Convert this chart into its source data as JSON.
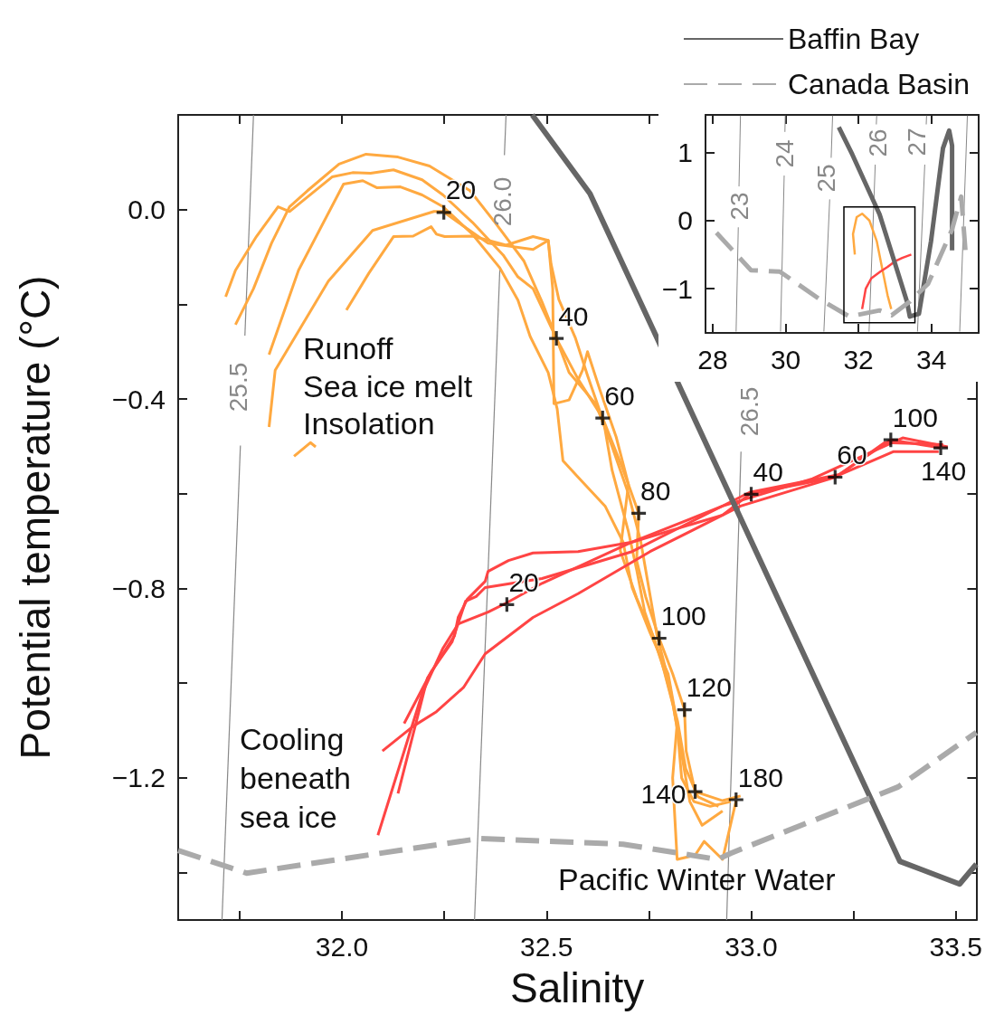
{
  "chart_data": [
    {
      "type": "line",
      "xlabel": "Salinity",
      "ylabel": "Potential temperature (°C)",
      "xlim": [
        31.6,
        33.55
      ],
      "xticks": [
        {
          "value": 31.75,
          "label": null
        },
        {
          "value": 32,
          "label": "32.0"
        },
        {
          "value": 32.25,
          "label": null
        },
        {
          "value": 32.5,
          "label": "32.5"
        },
        {
          "value": 32.75,
          "label": null
        },
        {
          "value": 33,
          "label": "33.0"
        },
        {
          "value": 33.25,
          "label": null
        },
        {
          "value": 33.5,
          "label": "33.5"
        }
      ],
      "ylim": [
        -1.5,
        0.2
      ],
      "yticks": [
        {
          "value": -1.4,
          "label": null
        },
        {
          "value": -1.2,
          "label": "−1.2"
        },
        {
          "value": -1,
          "label": null
        },
        {
          "value": -0.8,
          "label": "−0.8"
        },
        {
          "value": -0.6,
          "label": null
        },
        {
          "value": -0.4,
          "label": "−0.4"
        },
        {
          "value": -0.2,
          "label": null
        },
        {
          "value": 0,
          "label": "0.0"
        }
      ],
      "grid": false,
      "legend": "top right",
      "annotations": [
        "Runoff",
        "Sea ice melt",
        "Insolation",
        "Cooling",
        "beneath",
        "sea ice",
        "Pacific Winter Water",
        "25.5",
        "26.0",
        "26.5",
        {
          "text": "20",
          "x": 32.249,
          "y": -0.006
        },
        {
          "text": "40",
          "x": 32.524,
          "y": -0.272
        },
        {
          "text": "60",
          "x": 32.637,
          "y": -0.44
        },
        {
          "text": "80",
          "x": 32.725,
          "y": -0.641
        },
        {
          "text": "100",
          "x": 32.775,
          "y": -0.905
        },
        {
          "text": "120",
          "x": 32.837,
          "y": -1.056
        },
        {
          "text": "140",
          "x": 32.863,
          "y": -1.229
        },
        {
          "text": "180",
          "x": 32.963,
          "y": -1.246
        },
        {
          "text": "20",
          "x": 32.403,
          "y": -0.834
        },
        {
          "text": "40",
          "x": 33.0,
          "y": -0.601
        },
        {
          "text": "60",
          "x": 33.205,
          "y": -0.565
        },
        {
          "text": "100",
          "x": 33.341,
          "y": -0.486
        },
        {
          "text": "140",
          "x": 33.463,
          "y": -0.503
        }
      ],
      "series": [
        {
          "color": "#888888",
          "x": [
            31.784,
            31.763
          ],
          "values": [
            0.2,
            -0.266
          ]
        },
        {
          "color": "#888888",
          "x": [
            31.752,
            31.707
          ],
          "values": [
            -0.498,
            -1.5
          ]
        },
        {
          "color": "#888888",
          "x": [
            32.401,
            32.397
          ],
          "values": [
            0.2,
            0.115
          ]
        },
        {
          "color": "#888888",
          "x": [
            32.386,
            32.324
          ],
          "values": [
            -0.122,
            -1.5
          ]
        },
        {
          "color": "#888888",
          "x": [
            32.975,
            32.94
          ],
          "values": [
            -0.511,
            -1.5
          ]
        },
        {
          "name": "Baffin Bay",
          "color": "#666666",
          "line_style": "solid",
          "x": [
            32.465,
            32.606,
            33.363,
            33.509,
            33.55
          ],
          "values": [
            0.2,
            0.034,
            -1.376,
            -1.424,
            -1.382
          ]
        },
        {
          "name": "Canada Basin",
          "color": "#aaaaaa",
          "line_style": "dashed",
          "x": [
            31.6,
            31.767,
            32.335,
            32.687,
            32.918,
            32.95,
            33.359,
            33.55
          ],
          "values": [
            -1.353,
            -1.401,
            -1.328,
            -1.34,
            -1.372,
            -1.359,
            -1.219,
            -1.104
          ]
        },
        {
          "color": "#ffa940",
          "x": [
            31.716,
            31.74,
            31.791,
            31.844,
            31.872,
            31.976,
            32.026,
            32.07,
            32.126,
            32.196,
            32.247,
            32.319,
            32.394,
            32.43,
            32.467,
            32.524,
            32.577,
            32.637,
            32.687,
            32.725,
            32.72,
            32.742,
            32.775,
            32.808,
            32.837,
            32.841,
            32.863,
            32.93,
            32.974
          ],
          "values": [
            -0.184,
            -0.128,
            -0.057,
            0.006,
            -0.004,
            0.069,
            0.078,
            0.077,
            0.084,
            0.063,
            0.031,
            -0.027,
            -0.096,
            -0.142,
            -0.167,
            -0.272,
            -0.358,
            -0.44,
            -0.549,
            -0.641,
            -0.741,
            -0.817,
            -0.905,
            -0.98,
            -1.056,
            -1.143,
            -1.229,
            -1.248,
            -1.238
          ]
        },
        {
          "color": "#ffa940",
          "x": [
            31.74,
            31.784,
            31.828,
            31.872,
            31.916,
            31.993,
            32.059,
            32.137,
            32.214,
            32.313,
            32.374,
            32.445,
            32.489,
            32.524,
            32.555,
            32.62,
            32.66,
            32.7,
            32.73,
            32.75,
            32.77,
            32.8,
            32.82,
            32.83,
            32.86,
            32.9,
            32.95
          ],
          "values": [
            -0.243,
            -0.167,
            -0.071,
            0.006,
            0.04,
            0.096,
            0.117,
            0.111,
            0.092,
            0.04,
            -0.027,
            -0.109,
            -0.195,
            -0.272,
            -0.344,
            -0.41,
            -0.5,
            -0.6,
            -0.7,
            -0.8,
            -0.9,
            -1.0,
            -1.1,
            -1.2,
            -1.25,
            -1.26,
            -1.25
          ]
        },
        {
          "color": "#ffa940",
          "x": [
            31.822,
            31.894,
            32.004,
            32.051,
            32.086,
            32.143,
            32.196,
            32.247,
            32.319,
            32.385,
            32.43,
            32.46,
            32.504,
            32.526,
            32.54,
            32.577,
            32.643,
            32.687,
            32.709,
            32.753,
            32.797,
            32.819,
            32.808,
            32.819,
            32.863,
            32.885,
            32.93,
            32.963
          ],
          "values": [
            -0.306,
            -0.128,
            0.054,
            0.061,
            0.046,
            0.048,
            0.031,
            0.006,
            -0.052,
            -0.122,
            -0.191,
            -0.268,
            -0.344,
            -0.421,
            -0.53,
            -0.565,
            -0.626,
            -0.702,
            -0.798,
            -0.894,
            -0.98,
            -1.085,
            -1.2,
            -1.372,
            -1.363,
            -1.334,
            -1.372,
            -1.248
          ]
        },
        {
          "color": "#ffa940",
          "x": [
            31.822,
            31.837,
            31.967,
            32.075,
            32.225,
            32.247,
            32.284,
            32.357,
            32.467,
            32.504,
            32.511,
            32.53,
            32.57,
            32.6,
            32.64,
            32.66,
            32.7,
            32.72,
            32.74,
            32.78,
            32.81,
            32.83,
            32.85,
            32.88,
            32.93
          ],
          "values": [
            -0.459,
            -0.339,
            -0.151,
            -0.044,
            -0.004,
            -0.004,
            -0.027,
            -0.071,
            -0.084,
            -0.065,
            -0.115,
            -0.19,
            -0.27,
            -0.35,
            -0.45,
            -0.55,
            -0.68,
            -0.76,
            -0.85,
            -0.95,
            -1.05,
            -1.15,
            -1.25,
            -1.3,
            -1.27
          ]
        },
        {
          "color": "#ffa940",
          "x": [
            32.011,
            32.066,
            32.126,
            32.174,
            32.218,
            32.231,
            32.251,
            32.319,
            32.401,
            32.467,
            32.504,
            32.515,
            32.518,
            32.555,
            32.588,
            32.6,
            32.63,
            32.67,
            32.7,
            32.68,
            32.72,
            32.76,
            32.79,
            32.82,
            32.84,
            32.87,
            32.92
          ],
          "values": [
            -0.212,
            -0.134,
            -0.057,
            -0.056,
            -0.036,
            -0.052,
            -0.057,
            -0.056,
            -0.075,
            -0.057,
            -0.065,
            -0.167,
            -0.41,
            -0.402,
            -0.339,
            -0.3,
            -0.38,
            -0.48,
            -0.58,
            -0.72,
            -0.82,
            -0.9,
            -0.98,
            -1.08,
            -1.18,
            -1.24,
            -1.26
          ]
        },
        {
          "color": "#ffa940",
          "x": [
            31.883,
            31.923,
            31.936
          ],
          "values": [
            -0.521,
            -0.492,
            -0.501
          ]
        },
        {
          "color": "#ff4444",
          "x": [
            32.088,
            32.196,
            32.247,
            32.284,
            32.357,
            32.401,
            32.489,
            32.709,
            32.93,
            32.996,
            33.205,
            33.341,
            33.463
          ],
          "values": [
            -1.321,
            -1.022,
            -0.926,
            -0.875,
            -0.85,
            -0.831,
            -0.789,
            -0.702,
            -0.645,
            -0.601,
            -0.565,
            -0.486,
            -0.503
          ]
        },
        {
          "color": "#ff4444",
          "x": [
            32.099,
            32.174,
            32.231,
            32.297,
            32.35,
            32.467,
            32.577,
            32.753,
            32.974,
            33.194,
            33.348,
            33.458
          ],
          "values": [
            -1.143,
            -1.091,
            -1.06,
            -1.009,
            -0.938,
            -0.861,
            -0.811,
            -0.722,
            -0.626,
            -0.568,
            -0.511,
            -0.511
          ]
        },
        {
          "color": "#ff4444",
          "x": [
            32.137,
            32.209,
            32.275,
            32.284,
            32.306,
            32.35,
            32.357,
            32.407,
            32.467,
            32.577,
            32.709,
            32.93,
            33.15,
            33.37,
            33.48
          ],
          "values": [
            -1.233,
            -0.989,
            -0.9,
            -0.861,
            -0.823,
            -0.785,
            -0.764,
            -0.741,
            -0.725,
            -0.722,
            -0.702,
            -0.626,
            -0.568,
            -0.482,
            -0.501
          ]
        },
        {
          "color": "#ff4444",
          "x": [
            32.152,
            32.218,
            32.269,
            32.302,
            32.328,
            32.35,
            32.489,
            32.709,
            32.996,
            33.216,
            33.326,
            33.469
          ],
          "values": [
            -1.085,
            -0.976,
            -0.913,
            -0.827,
            -0.817,
            -0.798,
            -0.779,
            -0.722,
            -0.597,
            -0.559,
            -0.492,
            -0.496
          ]
        },
        {
          "type": "scatter",
          "marker": "cross",
          "color": "#000000",
          "x": [
            32.249,
            32.524,
            32.637,
            32.725,
            32.775,
            32.837,
            32.863,
            32.963
          ],
          "values": [
            -0.006,
            -0.272,
            -0.44,
            -0.641,
            -0.905,
            -1.056,
            -1.229,
            -1.246
          ]
        },
        {
          "type": "scatter",
          "marker": "cross",
          "color": "#000000",
          "x": [
            32.403,
            33.0,
            33.205,
            33.341,
            33.463
          ],
          "values": [
            -0.834,
            -0.601,
            -0.565,
            -0.486,
            -0.503
          ]
        }
      ]
    },
    {
      "type": "line",
      "xlim": [
        27.8,
        35.3
      ],
      "xticks": [
        28,
        30,
        32,
        34
      ],
      "ylim": [
        -1.65,
        1.55
      ],
      "yticks": [
        {
          "value": -1,
          "label": "−1"
        },
        0,
        1
      ],
      "grid": false,
      "legend": false,
      "annotations": [
        "23",
        "24",
        "25",
        "26",
        "27"
      ],
      "series": [
        {
          "color": "#888888",
          "x": [
            28.76,
            28.72
          ],
          "values": [
            1.54,
            0.5
          ]
        },
        {
          "color": "#888888",
          "x": [
            28.7,
            28.64
          ],
          "values": [
            -0.1,
            -1.63
          ]
        },
        {
          "color": "#888888",
          "x": [
            29.99,
            29.98
          ],
          "values": [
            1.54,
            1.3
          ]
        },
        {
          "color": "#888888",
          "x": [
            29.96,
            29.86
          ],
          "values": [
            0.66,
            -1.63
          ]
        },
        {
          "color": "#888888",
          "x": [
            31.29,
            31.25
          ],
          "values": [
            1.54,
            0.92
          ]
        },
        {
          "color": "#888888",
          "x": [
            31.21,
            31.05
          ],
          "values": [
            0.31,
            -1.63
          ]
        },
        {
          "color": "#888888",
          "x": [
            32.5,
            32.49
          ],
          "values": [
            1.54,
            1.41
          ]
        },
        {
          "color": "#888888",
          "x": [
            32.46,
            32.29
          ],
          "values": [
            0.82,
            -1.63
          ]
        },
        {
          "color": "#888888",
          "x": [
            33.87,
            33.86
          ],
          "values": [
            1.54,
            1.41
          ]
        },
        {
          "color": "#888888",
          "x": [
            33.82,
            33.62
          ],
          "values": [
            0.82,
            -1.63
          ]
        },
        {
          "color": "#888888",
          "x": [
            34.99,
            34.78
          ],
          "values": [
            1.54,
            -1.63
          ]
        },
        {
          "color": "#ffa940",
          "x": [
            31.9,
            31.85,
            31.95,
            32.1,
            32.3,
            32.5,
            32.65,
            32.8,
            32.9
          ],
          "values": [
            -0.5,
            -0.2,
            0.05,
            0.1,
            0.0,
            -0.3,
            -0.7,
            -1.1,
            -1.3
          ]
        },
        {
          "color": "#ff4444",
          "x": [
            32.1,
            32.2,
            32.35,
            32.6,
            32.8,
            33.0,
            33.2,
            33.45
          ],
          "values": [
            -1.3,
            -1.0,
            -0.85,
            -0.75,
            -0.68,
            -0.6,
            -0.55,
            -0.5
          ]
        },
        {
          "color": "#666666",
          "line_style": "solid",
          "x": [
            31.46,
            31.83,
            32.58,
            33.33,
            33.41,
            33.66,
            33.99,
            34.32,
            34.49,
            34.57,
            34.57
          ],
          "values": [
            1.37,
            0.97,
            0.09,
            -1.19,
            -1.41,
            -1.37,
            -0.31,
            1.06,
            1.32,
            1.1,
            -0.44
          ]
        },
        {
          "color": "#aaaaaa",
          "line_style": "dashed",
          "x": [
            28.1,
            29.05,
            29.84,
            30.92,
            31.75,
            32.58,
            32.91,
            33.41,
            33.91,
            34.57,
            34.82,
            34.86,
            34.95
          ],
          "values": [
            -0.18,
            -0.73,
            -0.75,
            -1.15,
            -1.41,
            -1.32,
            -1.39,
            -1.19,
            -0.93,
            -0.13,
            0.35,
            0.09,
            -0.53
          ]
        }
      ]
    }
  ]
}
